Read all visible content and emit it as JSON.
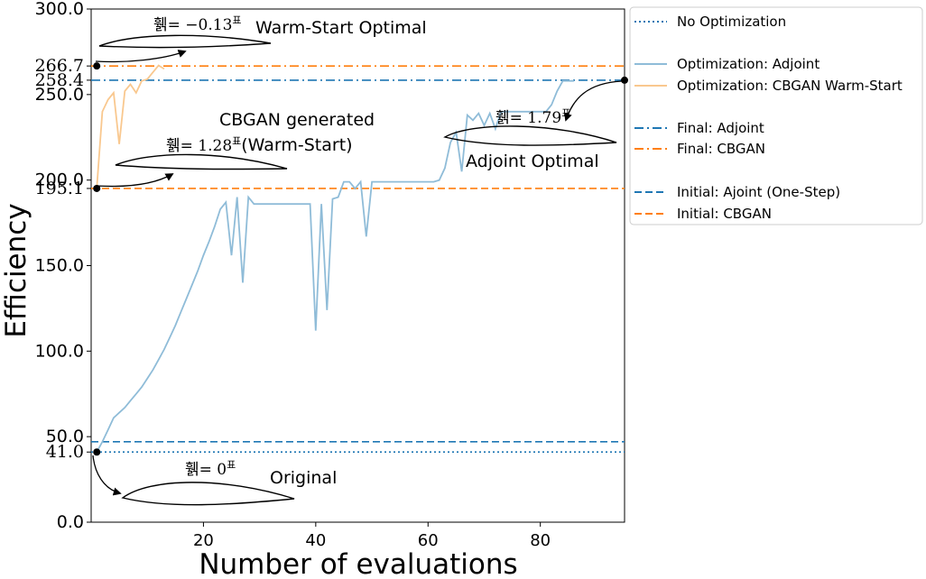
{
  "chart_data": {
    "type": "line",
    "xlabel": "Number of evaluations",
    "ylabel": "Efficiency",
    "xlim": [
      0,
      95
    ],
    "ylim": [
      0,
      300
    ],
    "xticks": [
      "20",
      "40",
      "60",
      "80"
    ],
    "xtick_values": [
      20,
      40,
      60,
      80
    ],
    "yticks": [
      "0.0",
      "50.0",
      "100.0",
      "150.0",
      "200.0",
      "250.0",
      "300.0"
    ],
    "ytick_values": [
      0,
      50,
      100,
      150,
      200,
      250,
      300
    ],
    "special_ticks": [
      "41.0",
      "195.1",
      "258.4",
      "266.7"
    ],
    "special_tick_values": [
      41.0,
      195.1,
      258.4,
      266.7
    ],
    "grid": false,
    "legend_position": "outside-right",
    "series": [
      {
        "name": "Optimization: Adjoint",
        "color": "#8fbcd8",
        "style": "solid",
        "x": [
          1,
          2,
          3,
          4,
          5,
          6,
          7,
          8,
          9,
          10,
          11,
          12,
          13,
          14,
          15,
          16,
          17,
          18,
          19,
          20,
          21,
          22,
          23,
          24,
          25,
          26,
          27,
          28,
          29,
          30,
          31,
          32,
          33,
          34,
          35,
          36,
          37,
          38,
          39,
          40,
          41,
          42,
          43,
          44,
          45,
          46,
          47,
          48,
          49,
          50,
          51,
          52,
          53,
          54,
          55,
          56,
          57,
          58,
          59,
          60,
          61,
          62,
          63,
          64,
          65,
          66,
          67,
          68,
          69,
          70,
          71,
          72,
          73,
          74,
          75,
          76,
          77,
          78,
          79,
          80,
          81,
          82,
          83,
          84,
          85,
          86
        ],
        "values": [
          41,
          47,
          54,
          61,
          64,
          67,
          71,
          75,
          79,
          84,
          89,
          95,
          101,
          108,
          115,
          123,
          131,
          139,
          147,
          156,
          164,
          173,
          183,
          187,
          156,
          190,
          140,
          190,
          186,
          186,
          186,
          186,
          186,
          186,
          186,
          186,
          186,
          186,
          186,
          112,
          186,
          124,
          189,
          190,
          199,
          199,
          195,
          199,
          167,
          199,
          199,
          199,
          199,
          199,
          199,
          199,
          199,
          199,
          199,
          199,
          199,
          200,
          207,
          222,
          228,
          205,
          238,
          235,
          239,
          232,
          239,
          230,
          240,
          240,
          240,
          240,
          240,
          240,
          240,
          240,
          240,
          244,
          252,
          258,
          258,
          258
        ]
      },
      {
        "name": "Optimization: CBGAN Warm-Start",
        "color": "#f9c88f",
        "style": "solid",
        "x": [
          1,
          2,
          3,
          4,
          5,
          6,
          7,
          8,
          9,
          10,
          11,
          12,
          13
        ],
        "values": [
          195.1,
          240,
          247,
          251,
          221,
          252,
          256,
          251,
          258,
          259,
          263,
          267,
          265
        ]
      },
      {
        "name": "No Optimization",
        "color": "#1f77b4",
        "style": "dotted",
        "value": 41.0
      },
      {
        "name": "Final: Adjoint",
        "color": "#1f77b4",
        "style": "dashdot",
        "value": 258.4
      },
      {
        "name": "Final: CBGAN",
        "color": "#ff7f0e",
        "style": "dashdot",
        "value": 266.7
      },
      {
        "name": "Initial: Ajoint (One-Step)",
        "color": "#1f77b4",
        "style": "dashed",
        "value": 47
      },
      {
        "name": "Initial: CBGAN",
        "color": "#ff7f0e",
        "style": "dashed",
        "value": 195.1
      }
    ],
    "legend": [
      "No Optimization",
      "Optimization: Adjoint",
      "Optimization: CBGAN Warm-Start",
      "Final: Adjoint",
      "Final: CBGAN",
      "Initial: Ajoint (One-Step)",
      "Initial: CBGAN"
    ],
    "marked_points": [
      {
        "x": 1,
        "y": 41.0
      },
      {
        "x": 1,
        "y": 195.1
      },
      {
        "x": 1,
        "y": 266.7
      },
      {
        "x": 95,
        "y": 258.4
      }
    ],
    "annotations": {
      "warm_title": "Warm-Start Optimal",
      "warm_eq": "휅= −0.13",
      "warm_sup": "표",
      "cbgan_title_1": "CBGAN generated",
      "cbgan_title_2": "(Warm-Start)",
      "cbgan_eq": "휅= 1.28",
      "cbgan_sup": "표",
      "adjoint_title": "Adjoint Optimal",
      "adjoint_eq": "휅= 1.79",
      "adjoint_sup": "표",
      "orig_title": "Original",
      "orig_eq": "휅= 0",
      "orig_sup": "표"
    }
  }
}
